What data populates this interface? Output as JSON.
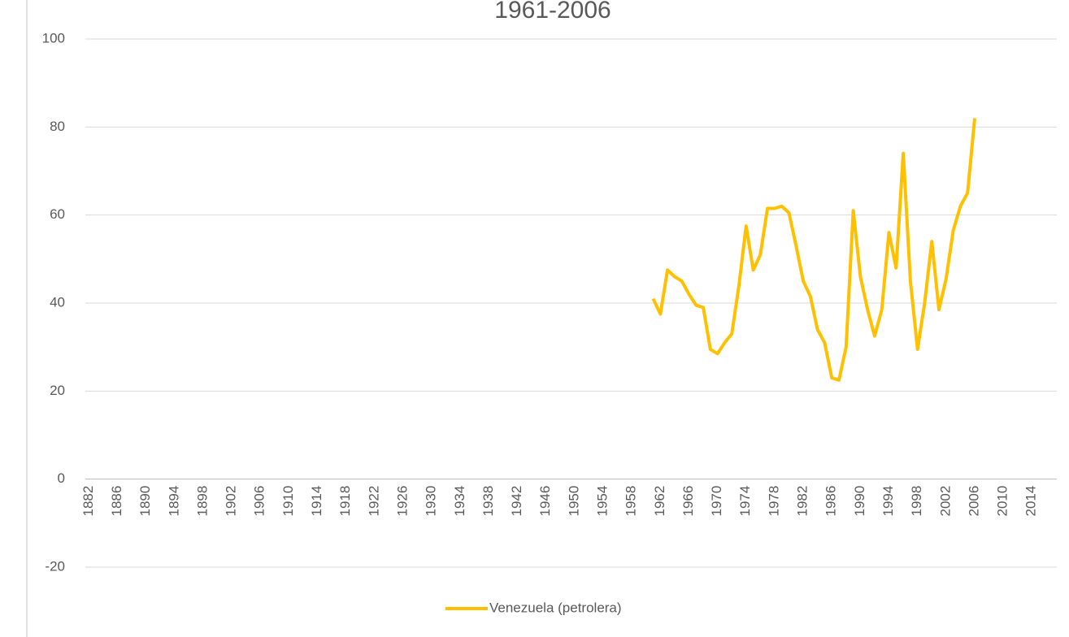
{
  "chart_data": {
    "type": "line",
    "title": "1961-2006",
    "categories": [
      "1882",
      null,
      null,
      null,
      "1886",
      null,
      null,
      null,
      "1890",
      null,
      null,
      null,
      "1894",
      null,
      null,
      null,
      "1898",
      null,
      null,
      null,
      "1902",
      null,
      null,
      null,
      "1906",
      null,
      null,
      null,
      "1910",
      null,
      null,
      null,
      "1914",
      null,
      null,
      null,
      "1918",
      null,
      null,
      null,
      "1922",
      null,
      null,
      null,
      "1926",
      null,
      null,
      null,
      "1930",
      null,
      null,
      null,
      "1934",
      null,
      null,
      null,
      "1938",
      null,
      null,
      null,
      "1942",
      null,
      null,
      null,
      "1946",
      null,
      null,
      null,
      "1950",
      null,
      null,
      null,
      "1954",
      null,
      null,
      null,
      "1958",
      null,
      null,
      null,
      "1962",
      null,
      null,
      null,
      "1966",
      null,
      null,
      null,
      "1970",
      null,
      null,
      null,
      "1974",
      null,
      null,
      null,
      "1978",
      null,
      null,
      null,
      "1982",
      null,
      null,
      null,
      "1986",
      null,
      null,
      null,
      "1990",
      null,
      null,
      null,
      "1994",
      null,
      null,
      null,
      "1998",
      null,
      null,
      null,
      "2002",
      null,
      null,
      null,
      "2006",
      null,
      null,
      null,
      "2010",
      null,
      null,
      null,
      "2014",
      null,
      null,
      null
    ],
    "series": [
      {
        "name": "Venezuela (petrolera)",
        "color": "#ffc000",
        "values": [
          null,
          null,
          null,
          null,
          null,
          null,
          null,
          null,
          null,
          null,
          null,
          null,
          null,
          null,
          null,
          null,
          null,
          null,
          null,
          null,
          null,
          null,
          null,
          null,
          null,
          null,
          null,
          null,
          null,
          null,
          null,
          null,
          null,
          null,
          null,
          null,
          null,
          null,
          null,
          null,
          null,
          null,
          null,
          null,
          null,
          null,
          null,
          null,
          null,
          null,
          null,
          null,
          null,
          null,
          null,
          null,
          null,
          null,
          null,
          null,
          null,
          null,
          null,
          null,
          null,
          null,
          null,
          null,
          null,
          null,
          null,
          null,
          null,
          null,
          null,
          null,
          null,
          null,
          null,
          41,
          37.5,
          47.5,
          46,
          45,
          42,
          39.5,
          39,
          29.5,
          28.5,
          31,
          33,
          44,
          57.5,
          47.5,
          51,
          61.5,
          61.5,
          62,
          60.5,
          53,
          45,
          41.5,
          34,
          31,
          23,
          22.5,
          30,
          61,
          46,
          38.5,
          32.5,
          38.5,
          56,
          48,
          74,
          45,
          29.5,
          40,
          54,
          38.5,
          45.5,
          56.5,
          62,
          65,
          82,
          null,
          null,
          null,
          null,
          null,
          null,
          null,
          null,
          null,
          null,
          null
        ]
      }
    ],
    "ylim": [
      -20,
      100
    ],
    "yticks": [
      -20,
      0,
      20,
      40,
      60,
      80,
      100
    ],
    "grid": true,
    "legend": "bottom"
  }
}
